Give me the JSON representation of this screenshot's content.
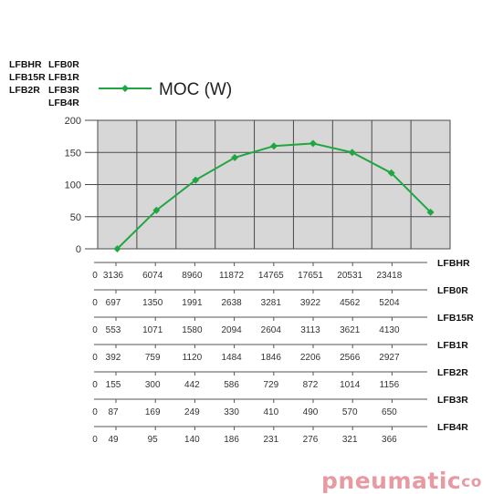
{
  "chart_data": {
    "type": "line",
    "legend": "MOC (W)",
    "y_ticks": [
      "200",
      "150",
      "100",
      "50",
      "0"
    ],
    "ylim": [
      0,
      200
    ],
    "grid": true,
    "series_color": "#20a640",
    "plot_background": "#d7d7d7",
    "x_index": [
      0.5,
      1.5,
      2.5,
      3.5,
      4.5,
      5.5,
      6.5,
      7.5,
      8.5
    ],
    "values": [
      0,
      60,
      107,
      142,
      160,
      164,
      150,
      118,
      57
    ],
    "models_left_col1": [
      "LFBHR",
      "LFB15R",
      "LFB2R"
    ],
    "models_left_col2": [
      "LFB0R",
      "LFB1R",
      "LFB3R",
      "LFB4R"
    ],
    "scales": [
      {
        "name": "LFBHR",
        "zero": "0",
        "ticks": [
          "3136",
          "6074",
          "8960",
          "11872",
          "14765",
          "17651",
          "20531",
          "23418"
        ]
      },
      {
        "name": "LFB0R",
        "zero": "0",
        "ticks": [
          "697",
          "1350",
          "1991",
          "2638",
          "3281",
          "3922",
          "4562",
          "5204"
        ]
      },
      {
        "name": "LFB15R",
        "zero": "0",
        "ticks": [
          "553",
          "1071",
          "1580",
          "2094",
          "2604",
          "3113",
          "3621",
          "4130"
        ]
      },
      {
        "name": "LFB1R",
        "zero": "0",
        "ticks": [
          "392",
          "759",
          "1120",
          "1484",
          "1846",
          "2206",
          "2566",
          "2927"
        ]
      },
      {
        "name": "LFB2R",
        "zero": "0",
        "ticks": [
          "155",
          "300",
          "442",
          "586",
          "729",
          "872",
          "1014",
          "1156"
        ]
      },
      {
        "name": "LFB3R",
        "zero": "0",
        "ticks": [
          "87",
          "169",
          "249",
          "330",
          "410",
          "490",
          "570",
          "650"
        ]
      },
      {
        "name": "LFB4R",
        "zero": "0",
        "ticks": [
          "49",
          "95",
          "140",
          "186",
          "231",
          "276",
          "321",
          "366"
        ]
      }
    ]
  },
  "logo": {
    "text": "pneumatic",
    "suffix": "co"
  }
}
